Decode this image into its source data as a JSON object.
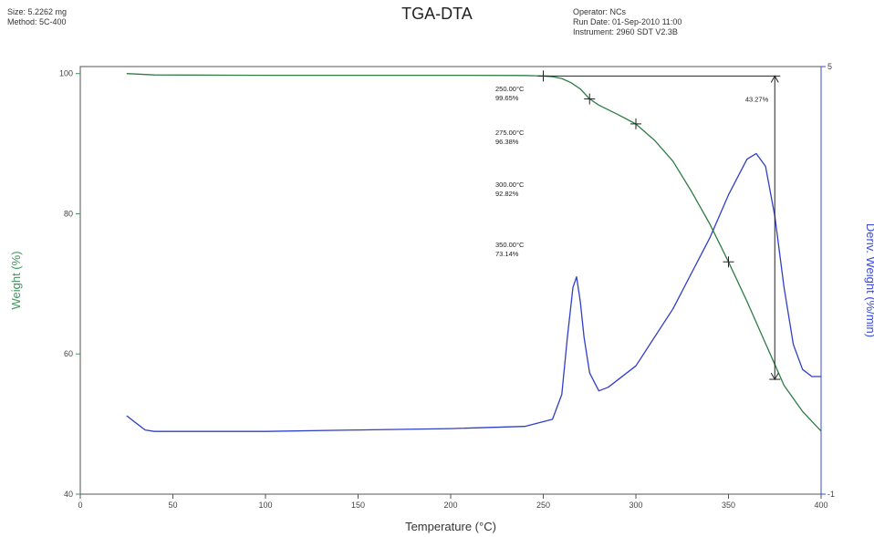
{
  "header": {
    "size": "Size: 5.2262 mg",
    "method": "Method: 5C-400",
    "operator": "Operator: NCs",
    "run_date": "Run Date: 01-Sep-2010 11:00",
    "instrument": "Instrument: 2960 SDT V2.3B"
  },
  "colors": {
    "weight_curve": "#2e7d44",
    "deriv_curve": "#2f3fc8",
    "weight_axis": "#3a9a5a",
    "deriv_axis": "#3a4ad8",
    "frame": "#555555"
  },
  "chart_data": {
    "type": "line",
    "title": "TGA-DTA",
    "xlabel": "Temperature (°C)",
    "ylabel": "Weight (%)",
    "y2label": "Deriv. Weight (%/min)",
    "xlim": [
      0,
      400
    ],
    "ylim": [
      40,
      101
    ],
    "y2lim": [
      -1,
      5
    ],
    "xticks": [
      0,
      50,
      100,
      150,
      200,
      250,
      300,
      350,
      400
    ],
    "yticks": [
      40,
      60,
      80,
      100
    ],
    "y2ticks": [
      -1,
      5
    ],
    "grid": false,
    "series": [
      {
        "key": "weight",
        "axis": "left",
        "x": [
          25,
          40,
          100,
          150,
          200,
          240,
          250,
          255,
          260,
          265,
          270,
          275,
          280,
          290,
          300,
          310,
          320,
          330,
          340,
          350,
          360,
          370,
          375,
          380,
          390,
          400
        ],
        "y": [
          100.0,
          99.8,
          99.75,
          99.75,
          99.75,
          99.72,
          99.65,
          99.55,
          99.3,
          98.7,
          97.8,
          96.38,
          95.5,
          94.2,
          92.8,
          90.5,
          87.5,
          83.2,
          78.5,
          73.14,
          67.5,
          61.5,
          58.5,
          55.5,
          51.8,
          49.0
        ]
      },
      {
        "key": "deriv",
        "axis": "right",
        "x": [
          25,
          30,
          35,
          40,
          60,
          100,
          150,
          200,
          240,
          255,
          260,
          263,
          266,
          268,
          270,
          272,
          275,
          280,
          285,
          300,
          320,
          340,
          350,
          360,
          365,
          370,
          375,
          380,
          385,
          390,
          395,
          400
        ],
        "y": [
          0.1,
          0.0,
          -0.1,
          -0.12,
          -0.12,
          -0.12,
          -0.1,
          -0.08,
          -0.05,
          0.05,
          0.4,
          1.2,
          1.9,
          2.05,
          1.7,
          1.2,
          0.7,
          0.45,
          0.5,
          0.8,
          1.6,
          2.6,
          3.2,
          3.7,
          3.78,
          3.6,
          2.9,
          1.9,
          1.1,
          0.75,
          0.65,
          0.65
        ]
      }
    ],
    "markers": [
      {
        "x": 250,
        "y": 99.65,
        "label_temp": "250.00°C",
        "label_pct": "99.65%"
      },
      {
        "x": 275,
        "y": 96.38,
        "label_temp": "275.00°C",
        "label_pct": "96.38%"
      },
      {
        "x": 300,
        "y": 92.82,
        "label_temp": "300.00°C",
        "label_pct": "92.82%"
      },
      {
        "x": 350,
        "y": 73.14,
        "label_temp": "350.00°C",
        "label_pct": "73.14%"
      }
    ],
    "step": {
      "x": 375,
      "y_top": 99.65,
      "y_bottom": 56.38,
      "label": "43.27%"
    }
  }
}
